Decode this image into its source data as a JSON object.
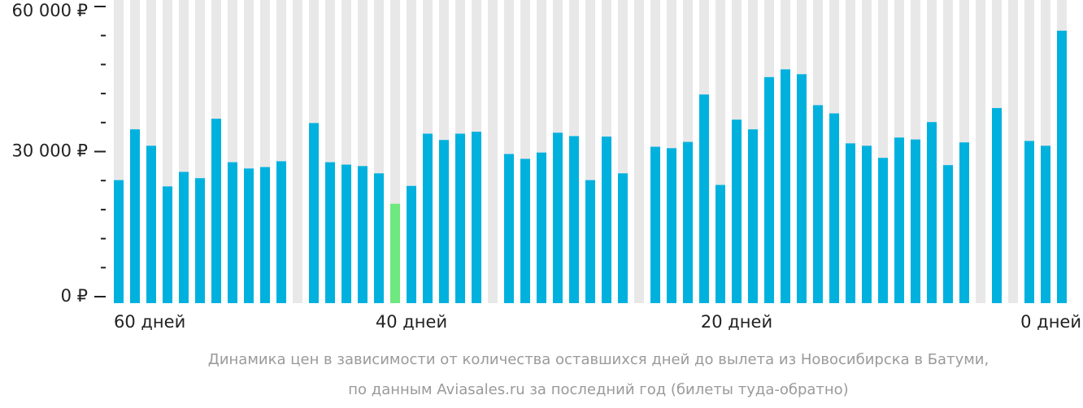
{
  "chart_data": {
    "type": "bar",
    "caption": [
      "Динамика цен в зависимости от количества оставшихся дней до вылета из Новосибирска в Батуми,",
      "по данным Aviasales.ru за последний год (билеты туда-обратно)"
    ],
    "x": [
      58,
      57,
      56,
      55,
      54,
      53,
      52,
      51,
      50,
      49,
      48,
      47,
      46,
      45,
      44,
      43,
      42,
      41,
      40,
      39,
      38,
      37,
      36,
      35,
      34,
      33,
      32,
      31,
      30,
      29,
      28,
      27,
      26,
      25,
      24,
      23,
      22,
      21,
      20,
      19,
      18,
      17,
      16,
      15,
      14,
      13,
      12,
      11,
      10,
      9,
      8,
      7,
      6,
      5,
      4,
      3,
      2,
      1,
      0
    ],
    "values": [
      24100,
      34600,
      31200,
      22800,
      25800,
      24500,
      36800,
      27800,
      26500,
      26800,
      28000,
      null,
      35900,
      27800,
      27300,
      27000,
      25500,
      19200,
      22900,
      33700,
      32400,
      33700,
      34100,
      null,
      29500,
      28500,
      29800,
      33900,
      33200,
      24100,
      33100,
      25500,
      null,
      31000,
      30700,
      32000,
      41800,
      23100,
      36600,
      34600,
      45400,
      47000,
      46000,
      39600,
      37900,
      31700,
      31200,
      28700,
      32900,
      32500,
      36100,
      27200,
      31900,
      null,
      39000,
      null,
      32200,
      31200,
      55000
    ],
    "colors": [
      "#00b1de",
      "#00b1de",
      "#00b1de",
      "#00b1de",
      "#00b1de",
      "#00b1de",
      "#00b1de",
      "#00b1de",
      "#00b1de",
      "#00b1de",
      "#00b1de",
      "#00b1de",
      "#00b1de",
      "#00b1de",
      "#00b1de",
      "#00b1de",
      "#00b1de",
      "#6ee87f",
      "#00b1de",
      "#00b1de",
      "#00b1de",
      "#00b1de",
      "#00b1de",
      "#00b1de",
      "#00b1de",
      "#00b1de",
      "#00b1de",
      "#00b1de",
      "#00b1de",
      "#00b1de",
      "#00b1de",
      "#00b1de",
      "#00b1de",
      "#00b1de",
      "#00b1de",
      "#00b1de",
      "#00b1de",
      "#00b1de",
      "#00b1de",
      "#00b1de",
      "#00b1de",
      "#00b1de",
      "#00b1de",
      "#00b1de",
      "#00b1de",
      "#00b1de",
      "#00b1de",
      "#00b1de",
      "#00b1de",
      "#00b1de",
      "#00b1de",
      "#00b1de",
      "#00b1de",
      "#00b1de",
      "#00b1de",
      "#00b1de",
      "#00b1de",
      "#00b1de",
      "#00b1de"
    ],
    "stripe_color": "#e8e8e8",
    "xlim": [
      60,
      0
    ],
    "xticks": [
      {
        "value": 60,
        "label": "60 дней"
      },
      {
        "value": 40,
        "label": "40 дней"
      },
      {
        "value": 20,
        "label": "20 дней"
      },
      {
        "value": 0,
        "label": "0 дней"
      }
    ],
    "ylim": [
      0,
      60000
    ],
    "yticks": [
      {
        "value": 0,
        "label": "0 ₽"
      },
      {
        "value": 30000,
        "label": "30 000 ₽"
      },
      {
        "value": 60000,
        "label": "60 000 ₽"
      }
    ],
    "yminorticks": [
      6000,
      12000,
      18000,
      24000,
      36000,
      42000,
      48000,
      54000
    ]
  }
}
